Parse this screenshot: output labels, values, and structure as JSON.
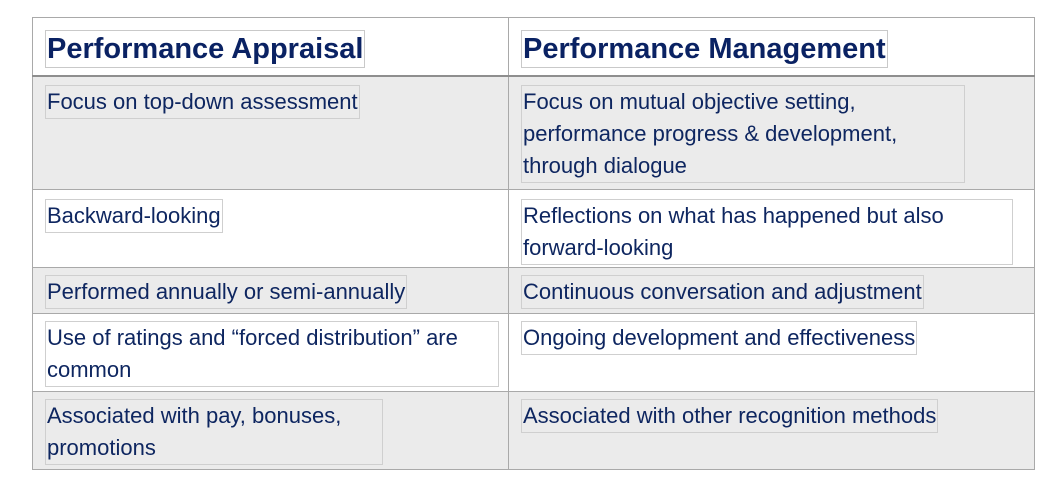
{
  "table": {
    "headers": [
      "Performance Appraisal",
      "Performance Management"
    ],
    "rows": [
      {
        "appraisal": "Focus on top-down assessment",
        "management": "Focus on mutual objective setting, performance progress & development, through dialogue"
      },
      {
        "appraisal": "Backward-looking",
        "management": "Reflections on what has happened but also forward-looking"
      },
      {
        "appraisal": "Performed annually or semi-annually",
        "management": "Continuous conversation and adjustment"
      },
      {
        "appraisal": "Use of ratings and “forced distribution” are common",
        "management": "Ongoing development and effectiveness"
      },
      {
        "appraisal": "Associated with pay, bonuses, promotions",
        "management": "Associated with other recognition methods"
      }
    ]
  },
  "colors": {
    "text": "#0e2660",
    "shaded_row": "#ebebeb",
    "border": "#a9a9a9"
  }
}
